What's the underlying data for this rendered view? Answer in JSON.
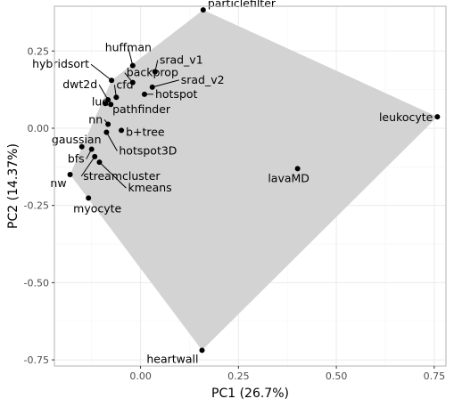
{
  "chart_data": {
    "type": "scatter",
    "xlabel": "PC1 (26.7%)",
    "ylabel": "PC2 (14.37%)",
    "xlim": [
      -0.22,
      0.78
    ],
    "ylim": [
      -0.77,
      0.395
    ],
    "xticks": [
      0.0,
      0.25,
      0.5,
      0.75
    ],
    "xtick_labels": [
      "0.00",
      "0.25",
      "0.50",
      "0.75"
    ],
    "yticks": [
      0.25,
      0.0,
      -0.25,
      -0.5,
      -0.75
    ],
    "ytick_labels": [
      "0.25",
      "0.00",
      "-0.25",
      "-0.50",
      "-0.75"
    ],
    "grid": true,
    "colors": {
      "hull": "#d3d3d3",
      "point": "#000000",
      "grid_major": "#ebebeb",
      "grid_minor": "#f5f5f5",
      "panel_border": "#b3b3b3"
    },
    "hull": [
      "particlefilter",
      "leukocyte",
      "heartwall",
      "nw",
      "hybridsort"
    ],
    "points": [
      {
        "label": "particlefilter",
        "x": 0.16,
        "y": 0.383
      },
      {
        "label": "leukocyte",
        "x": 0.758,
        "y": 0.037
      },
      {
        "label": "lavaMD",
        "x": 0.401,
        "y": -0.131
      },
      {
        "label": "heartwall",
        "x": 0.157,
        "y": -0.719
      },
      {
        "label": "huffman",
        "x": -0.02,
        "y": 0.203
      },
      {
        "label": "srad_v1",
        "x": 0.037,
        "y": 0.183
      },
      {
        "label": "hybridsort",
        "x": -0.074,
        "y": 0.155
      },
      {
        "label": "backprop",
        "x": -0.02,
        "y": 0.148
      },
      {
        "label": "srad_v2",
        "x": 0.03,
        "y": 0.133
      },
      {
        "label": "dwt2d",
        "x": -0.083,
        "y": 0.092
      },
      {
        "label": "cfd",
        "x": -0.062,
        "y": 0.1
      },
      {
        "label": "hotspot",
        "x": 0.01,
        "y": 0.11
      },
      {
        "label": "lud",
        "x": -0.076,
        "y": 0.077
      },
      {
        "label": "pathfinder",
        "x": -0.09,
        "y": 0.08
      },
      {
        "label": "nn",
        "x": -0.083,
        "y": 0.013
      },
      {
        "label": "b+tree",
        "x": -0.049,
        "y": -0.007
      },
      {
        "label": "hotspot3D",
        "x": -0.087,
        "y": -0.013
      },
      {
        "label": "gaussian",
        "x": -0.15,
        "y": -0.06
      },
      {
        "label": "bfs",
        "x": -0.125,
        "y": -0.068
      },
      {
        "label": "streamcluster",
        "x": -0.117,
        "y": -0.092
      },
      {
        "label": "kmeans",
        "x": -0.105,
        "y": -0.11
      },
      {
        "label": "nw",
        "x": -0.18,
        "y": -0.15
      },
      {
        "label": "myocyte",
        "x": -0.133,
        "y": -0.226
      }
    ]
  }
}
